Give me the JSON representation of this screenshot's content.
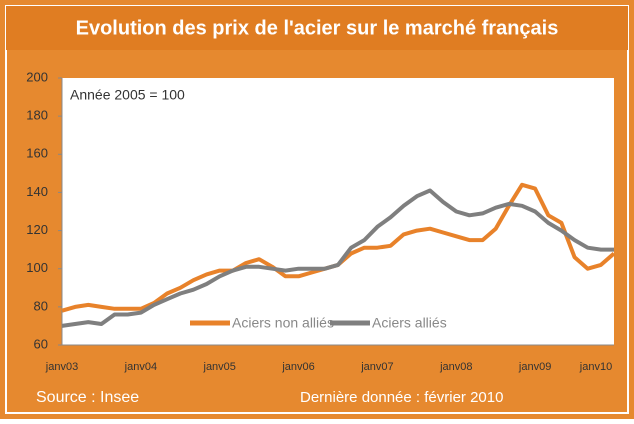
{
  "chart_data": {
    "type": "line",
    "title": "Evolution des prix de l'acier sur le marché français",
    "annotations": [
      "Année 2005 = 100",
      "Source : Insee",
      "Dernière donnée : février 2010"
    ],
    "categories": [
      "janv03",
      null,
      null,
      null,
      null,
      null,
      "janv04",
      null,
      null,
      null,
      null,
      null,
      "janv05",
      null,
      null,
      null,
      null,
      null,
      "janv06",
      null,
      null,
      null,
      null,
      null,
      "janv07",
      null,
      null,
      null,
      null,
      null,
      "janv08",
      null,
      null,
      null,
      null,
      null,
      "janv09",
      null,
      null,
      null,
      null,
      null,
      "janv10"
    ],
    "series": [
      {
        "name": "Aciers non alliés",
        "color": "#e8822a",
        "values": [
          78,
          80,
          81,
          80,
          79,
          79,
          79,
          82,
          87,
          90,
          94,
          97,
          99,
          99,
          103,
          105,
          101,
          96,
          96,
          98,
          100,
          102,
          108,
          111,
          111,
          112,
          118,
          120,
          121,
          119,
          117,
          115,
          115,
          121,
          133,
          144,
          142,
          128,
          124,
          106,
          100,
          102,
          108
        ]
      },
      {
        "name": "Aciers alliés",
        "color": "#7f7f7f",
        "values": [
          70,
          71,
          72,
          71,
          76,
          76,
          77,
          81,
          84,
          87,
          89,
          92,
          96,
          99,
          101,
          101,
          100,
          99,
          100,
          100,
          100,
          102,
          111,
          115,
          122,
          127,
          133,
          138,
          141,
          135,
          130,
          128,
          129,
          132,
          134,
          133,
          130,
          124,
          120,
          115,
          111,
          110,
          110
        ]
      }
    ],
    "ylim": [
      60,
      200
    ],
    "yticks": [
      60,
      80,
      100,
      120,
      140,
      160,
      180,
      200
    ],
    "grid": false,
    "legend": "bottom"
  }
}
